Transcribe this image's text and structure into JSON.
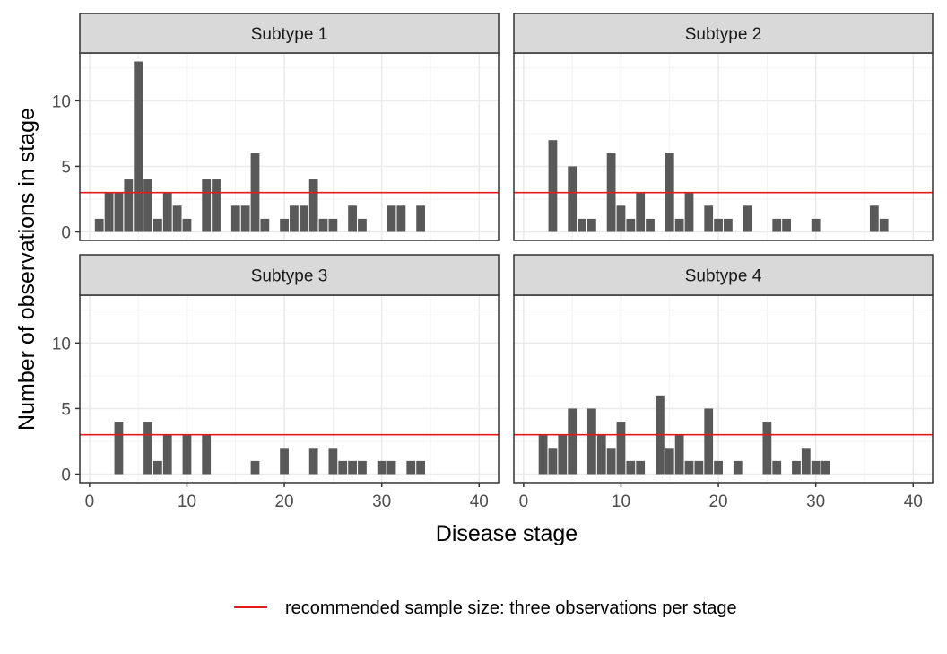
{
  "chart_data": {
    "type": "bar",
    "layout": "facet-grid 2x2",
    "xlabel": "Disease stage",
    "ylabel": "Number of observations in stage",
    "xlim": [
      -1,
      42
    ],
    "ylim": [
      -0.65,
      13.65
    ],
    "xticks": [
      0,
      10,
      20,
      30,
      40
    ],
    "yticks": [
      0,
      5,
      10
    ],
    "grid": true,
    "bar_color": "#595959",
    "reference_line": {
      "y": 3,
      "color": "#e41a1c",
      "label": "recommended sample size: three observations per stage"
    },
    "legend_position": "bottom",
    "panels": [
      {
        "title": "Subtype 1",
        "x": [
          1,
          2,
          3,
          4,
          5,
          6,
          7,
          8,
          9,
          10,
          12,
          13,
          15,
          16,
          17,
          18,
          20,
          21,
          22,
          23,
          24,
          25,
          27,
          28,
          31,
          32,
          34
        ],
        "values": [
          1,
          3,
          3,
          4,
          13,
          4,
          1,
          3,
          2,
          1,
          4,
          4,
          2,
          2,
          6,
          1,
          1,
          2,
          2,
          4,
          1,
          1,
          2,
          1,
          2,
          2,
          2
        ]
      },
      {
        "title": "Subtype 2",
        "x": [
          3,
          5,
          6,
          7,
          9,
          10,
          11,
          12,
          13,
          15,
          16,
          17,
          19,
          20,
          21,
          23,
          26,
          27,
          30,
          36,
          37
        ],
        "values": [
          7,
          5,
          1,
          1,
          6,
          2,
          1,
          3,
          1,
          6,
          1,
          3,
          2,
          1,
          1,
          2,
          1,
          1,
          1,
          2,
          1
        ]
      },
      {
        "title": "Subtype 3",
        "x": [
          3,
          6,
          7,
          8,
          10,
          12,
          17,
          20,
          23,
          25,
          26,
          27,
          28,
          30,
          31,
          33,
          34
        ],
        "values": [
          4,
          4,
          1,
          3,
          3,
          3,
          1,
          2,
          2,
          2,
          1,
          1,
          1,
          1,
          1,
          1,
          1
        ]
      },
      {
        "title": "Subtype 4",
        "x": [
          2,
          3,
          4,
          5,
          7,
          8,
          9,
          10,
          11,
          12,
          14,
          15,
          16,
          17,
          18,
          19,
          20,
          22,
          25,
          26,
          28,
          29,
          30,
          31
        ],
        "values": [
          3,
          2,
          3,
          5,
          5,
          3,
          2,
          4,
          1,
          1,
          6,
          2,
          3,
          1,
          1,
          5,
          1,
          1,
          4,
          1,
          1,
          2,
          1,
          1
        ]
      }
    ]
  }
}
